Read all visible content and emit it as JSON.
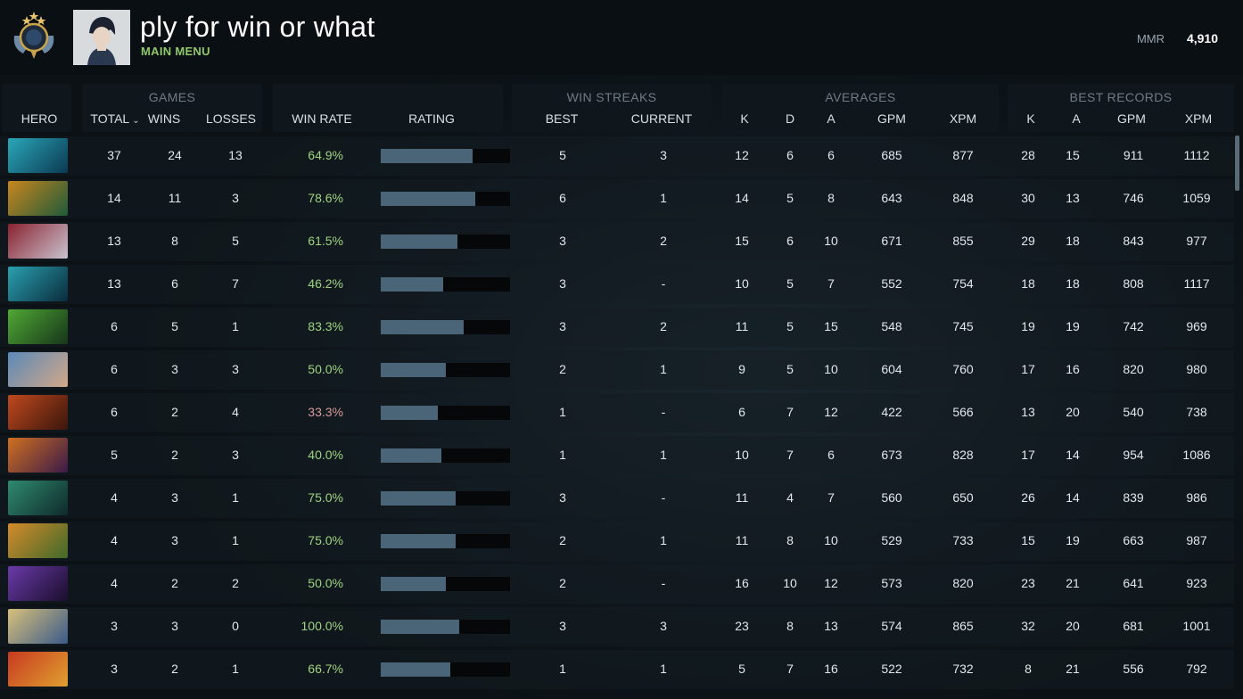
{
  "header": {
    "player_name": "ply for win or what",
    "main_menu": "MAIN MENU",
    "mmr_label": "MMR",
    "mmr_value": "4,910"
  },
  "groups": {
    "games": "GAMES",
    "win_streaks": "WIN STREAKS",
    "averages": "AVERAGES",
    "best_records": "BEST RECORDS"
  },
  "columns": {
    "hero": "HERO",
    "total": "TOTAL",
    "wins": "WINS",
    "losses": "LOSSES",
    "win_rate": "WIN RATE",
    "rating": "RATING",
    "best": "BEST",
    "current": "CURRENT",
    "avg_k": "K",
    "avg_d": "D",
    "avg_a": "A",
    "avg_gpm": "GPM",
    "avg_xpm": "XPM",
    "best_k": "K",
    "best_a": "A",
    "best_gpm": "GPM",
    "best_xpm": "XPM"
  },
  "rows": [
    {
      "hero_icon": "morphling-portrait-icon",
      "icon_colors": [
        "#2aa7b8",
        "#0b3a52"
      ],
      "total": "37",
      "wins": "24",
      "losses": "13",
      "win_rate": "64.9%",
      "good": true,
      "rating": 0.71,
      "best": "5",
      "current": "3",
      "k": "12",
      "d": "6",
      "a": "6",
      "gpm": "685",
      "xpm": "877",
      "bk": "28",
      "ba": "15",
      "bgpm": "911",
      "bxpm": "1112"
    },
    {
      "hero_icon": "gyrocopter-portrait-icon",
      "icon_colors": [
        "#c8861e",
        "#1f5a3a"
      ],
      "total": "14",
      "wins": "11",
      "losses": "3",
      "win_rate": "78.6%",
      "good": true,
      "rating": 0.73,
      "best": "6",
      "current": "1",
      "k": "14",
      "d": "5",
      "a": "8",
      "gpm": "643",
      "xpm": "848",
      "bk": "30",
      "ba": "13",
      "bgpm": "746",
      "bxpm": "1059"
    },
    {
      "hero_icon": "queen-of-pain-portrait-icon",
      "icon_colors": [
        "#8a2230",
        "#c9c3cf"
      ],
      "total": "13",
      "wins": "8",
      "losses": "5",
      "win_rate": "61.5%",
      "good": true,
      "rating": 0.59,
      "best": "3",
      "current": "2",
      "k": "15",
      "d": "6",
      "a": "10",
      "gpm": "671",
      "xpm": "855",
      "bk": "29",
      "ba": "18",
      "bgpm": "843",
      "bxpm": "977"
    },
    {
      "hero_icon": "void-spirit-portrait-icon",
      "icon_colors": [
        "#2aa0b0",
        "#0a2c3c"
      ],
      "total": "13",
      "wins": "6",
      "losses": "7",
      "win_rate": "46.2%",
      "good": true,
      "rating": 0.48,
      "best": "3",
      "current": "-",
      "k": "10",
      "d": "5",
      "a": "7",
      "gpm": "552",
      "xpm": "754",
      "bk": "18",
      "ba": "18",
      "bgpm": "808",
      "bxpm": "1117"
    },
    {
      "hero_icon": "venomancer-portrait-icon",
      "icon_colors": [
        "#4fa834",
        "#17361a"
      ],
      "total": "6",
      "wins": "5",
      "losses": "1",
      "win_rate": "83.3%",
      "good": true,
      "rating": 0.64,
      "best": "3",
      "current": "2",
      "k": "11",
      "d": "5",
      "a": "15",
      "gpm": "548",
      "xpm": "745",
      "bk": "19",
      "ba": "19",
      "bgpm": "742",
      "bxpm": "969"
    },
    {
      "hero_icon": "kunkka-portrait-icon",
      "icon_colors": [
        "#5b89b8",
        "#d2a888"
      ],
      "total": "6",
      "wins": "3",
      "losses": "3",
      "win_rate": "50.0%",
      "good": true,
      "rating": 0.5,
      "best": "2",
      "current": "1",
      "k": "9",
      "d": "5",
      "a": "10",
      "gpm": "604",
      "xpm": "760",
      "bk": "17",
      "ba": "16",
      "bgpm": "820",
      "bxpm": "980"
    },
    {
      "hero_icon": "ember-spirit-portrait-icon",
      "icon_colors": [
        "#c0481e",
        "#3a160c"
      ],
      "total": "6",
      "wins": "2",
      "losses": "4",
      "win_rate": "33.3%",
      "good": false,
      "rating": 0.44,
      "best": "1",
      "current": "-",
      "k": "6",
      "d": "7",
      "a": "12",
      "gpm": "422",
      "xpm": "566",
      "bk": "13",
      "ba": "20",
      "bgpm": "540",
      "bxpm": "738"
    },
    {
      "hero_icon": "anti-mage-portrait-icon",
      "icon_colors": [
        "#d07020",
        "#3a1a48"
      ],
      "total": "5",
      "wins": "2",
      "losses": "3",
      "win_rate": "40.0%",
      "good": true,
      "rating": 0.47,
      "best": "1",
      "current": "1",
      "k": "10",
      "d": "7",
      "a": "6",
      "gpm": "673",
      "xpm": "828",
      "bk": "17",
      "ba": "14",
      "bgpm": "954",
      "bxpm": "1086"
    },
    {
      "hero_icon": "morphling-alt-portrait-icon",
      "icon_colors": [
        "#2f8a70",
        "#0f2a2a"
      ],
      "total": "4",
      "wins": "3",
      "losses": "1",
      "win_rate": "75.0%",
      "good": true,
      "rating": 0.58,
      "best": "3",
      "current": "-",
      "k": "11",
      "d": "4",
      "a": "7",
      "gpm": "560",
      "xpm": "650",
      "bk": "26",
      "ba": "14",
      "bgpm": "839",
      "bxpm": "986"
    },
    {
      "hero_icon": "windranger-portrait-icon",
      "icon_colors": [
        "#d68a2a",
        "#3f6a2a"
      ],
      "total": "4",
      "wins": "3",
      "losses": "1",
      "win_rate": "75.0%",
      "good": true,
      "rating": 0.58,
      "best": "2",
      "current": "1",
      "k": "11",
      "d": "8",
      "a": "10",
      "gpm": "529",
      "xpm": "733",
      "bk": "15",
      "ba": "19",
      "bgpm": "663",
      "bxpm": "987"
    },
    {
      "hero_icon": "faceless-void-portrait-icon",
      "icon_colors": [
        "#6a3aa8",
        "#1a0e2c"
      ],
      "total": "4",
      "wins": "2",
      "losses": "2",
      "win_rate": "50.0%",
      "good": true,
      "rating": 0.5,
      "best": "2",
      "current": "-",
      "k": "16",
      "d": "10",
      "a": "12",
      "gpm": "573",
      "xpm": "820",
      "bk": "23",
      "ba": "21",
      "bgpm": "641",
      "bxpm": "923"
    },
    {
      "hero_icon": "keeper-of-the-light-portrait-icon",
      "icon_colors": [
        "#d8c07a",
        "#3a5a8a"
      ],
      "total": "3",
      "wins": "3",
      "losses": "0",
      "win_rate": "100.0%",
      "good": true,
      "rating": 0.61,
      "best": "3",
      "current": "3",
      "k": "23",
      "d": "8",
      "a": "13",
      "gpm": "574",
      "xpm": "865",
      "bk": "32",
      "ba": "20",
      "bgpm": "681",
      "bxpm": "1001"
    },
    {
      "hero_icon": "huskar-portrait-icon",
      "icon_colors": [
        "#c83a20",
        "#e0a030"
      ],
      "total": "3",
      "wins": "2",
      "losses": "1",
      "win_rate": "66.7%",
      "good": true,
      "rating": 0.54,
      "best": "1",
      "current": "1",
      "k": "5",
      "d": "7",
      "a": "16",
      "gpm": "522",
      "xpm": "732",
      "bk": "8",
      "ba": "21",
      "bgpm": "556",
      "bxpm": "792"
    }
  ]
}
